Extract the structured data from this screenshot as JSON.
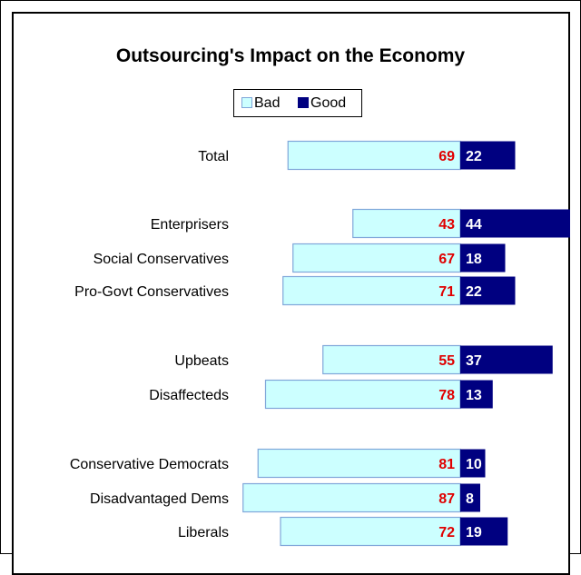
{
  "chart_data": {
    "type": "bar",
    "title": "Outsourcing's Impact on the Economy",
    "categories": [
      "Total",
      "Enterprisers",
      "Social Conservatives",
      "Pro-Govt Conservatives",
      "Upbeats",
      "Disaffecteds",
      "Conservative Democrats",
      "Disadvantaged Dems",
      "Liberals"
    ],
    "series": [
      {
        "name": "Bad",
        "values": [
          69,
          43,
          67,
          71,
          55,
          78,
          81,
          87,
          72
        ]
      },
      {
        "name": "Good",
        "values": [
          22,
          44,
          18,
          22,
          37,
          13,
          10,
          8,
          19
        ]
      }
    ],
    "legend_position": "top-center",
    "grid": false,
    "colors": {
      "bad_fill": "#ccffff",
      "bad_border": "#7fa6d9",
      "good_fill": "#000080",
      "bad_label": "#e00000",
      "good_label": "#ffffff"
    }
  }
}
